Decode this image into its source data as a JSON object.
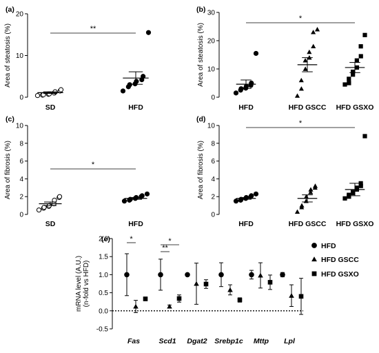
{
  "chart_data": [
    {
      "panel": "(a)",
      "type": "scatter",
      "ylabel": "Area of steatosis (%)",
      "ylim": [
        0,
        20
      ],
      "yticks": [
        "0",
        "10",
        "20"
      ],
      "categories": [
        "SD",
        "HFD"
      ],
      "groups": [
        {
          "category": "SD",
          "marker": "open-circle",
          "mean": 1.1,
          "sem": 0.2,
          "values": [
            0.4,
            0.5,
            0.6,
            0.7,
            0.8,
            1.0,
            1.3,
            1.5,
            1.8
          ]
        },
        {
          "category": "HFD",
          "marker": "circle",
          "mean": 4.6,
          "sem": 1.5,
          "values": [
            1.5,
            2.5,
            3.0,
            3.2,
            3.8,
            4.2,
            5.0,
            15.5
          ]
        }
      ],
      "significance": [
        {
          "from": "SD",
          "to": "HFD",
          "label": "**"
        }
      ]
    },
    {
      "panel": "(b)",
      "type": "scatter",
      "ylabel": "Area of steatosis (%)",
      "ylim": [
        0,
        30
      ],
      "yticks": [
        "0",
        "10",
        "20",
        "30"
      ],
      "categories": [
        "HFD",
        "HFD GSCC",
        "HFD GSXO"
      ],
      "groups": [
        {
          "category": "HFD",
          "marker": "circle",
          "mean": 4.6,
          "sem": 1.5,
          "values": [
            1.5,
            2.5,
            3.0,
            3.2,
            3.8,
            4.2,
            5.0,
            15.5
          ]
        },
        {
          "category": "HFD GSCC",
          "marker": "triangle",
          "mean": 11.5,
          "sem": 2.5,
          "values": [
            0.5,
            3.0,
            6.0,
            10.0,
            13.0,
            14.0,
            16.0,
            18.0,
            23.0,
            24.0
          ]
        },
        {
          "category": "HFD GSXO",
          "marker": "square",
          "mean": 10.5,
          "sem": 1.8,
          "values": [
            4.5,
            5.0,
            6.5,
            8.0,
            9.0,
            10.5,
            13.0,
            14.5,
            18.0,
            22.0
          ]
        }
      ],
      "significance": [
        {
          "from": "HFD",
          "to": "HFD GSXO",
          "label": "*"
        }
      ]
    },
    {
      "panel": "(c)",
      "type": "scatter",
      "ylabel": "Area of fibrosis (%)",
      "ylim": [
        0,
        10
      ],
      "yticks": [
        "0",
        "2",
        "4",
        "6",
        "8",
        "10"
      ],
      "categories": [
        "SD",
        "HFD"
      ],
      "groups": [
        {
          "category": "SD",
          "marker": "open-circle",
          "mean": 1.2,
          "sem": 0.2,
          "values": [
            0.5,
            0.7,
            0.8,
            0.9,
            1.0,
            1.2,
            1.6,
            1.9,
            2.0
          ]
        },
        {
          "category": "HFD",
          "marker": "circle",
          "mean": 1.8,
          "sem": 0.1,
          "values": [
            1.5,
            1.6,
            1.7,
            1.8,
            1.9,
            2.0,
            2.1,
            2.3
          ]
        }
      ],
      "significance": [
        {
          "from": "SD",
          "to": "HFD",
          "label": "*"
        }
      ]
    },
    {
      "panel": "(d)",
      "type": "scatter",
      "ylabel": "Area of fibrosis (%)",
      "ylim": [
        0,
        10
      ],
      "yticks": [
        "0",
        "2",
        "4",
        "6",
        "8",
        "10"
      ],
      "categories": [
        "HFD",
        "HFD GSCC",
        "HFD GSXO"
      ],
      "groups": [
        {
          "category": "HFD",
          "marker": "circle",
          "mean": 1.8,
          "sem": 0.1,
          "values": [
            1.5,
            1.6,
            1.7,
            1.8,
            1.9,
            2.0,
            2.1,
            2.3
          ]
        },
        {
          "category": "HFD GSCC",
          "marker": "triangle",
          "mean": 1.8,
          "sem": 0.4,
          "values": [
            0.3,
            0.8,
            1.0,
            1.5,
            2.0,
            2.5,
            2.8,
            3.0,
            3.2
          ]
        },
        {
          "category": "HFD GSXO",
          "marker": "square",
          "mean": 2.8,
          "sem": 0.7,
          "values": [
            1.8,
            2.0,
            2.2,
            2.4,
            2.5,
            2.8,
            3.0,
            3.2,
            3.5,
            8.8
          ]
        }
      ],
      "significance": [
        {
          "from": "HFD",
          "to": "HFD GSXO",
          "label": "*"
        }
      ]
    },
    {
      "panel": "(e)",
      "type": "scatter",
      "ylabel": "mRNA level (A.U.)",
      "ylabel2": "(n-fold vs HFD)",
      "ylim": [
        -0.5,
        2.0
      ],
      "yticks": [
        "-0.5",
        "0.0",
        "0.5",
        "1.0",
        "1.5",
        "2.0"
      ],
      "categories": [
        "Fas",
        "Scd1",
        "Dgat2",
        "Srebp1c",
        "Mttp",
        "Lpl"
      ],
      "series": [
        {
          "name": "HFD",
          "marker": "circle",
          "values": [
            1.0,
            1.0,
            1.0,
            1.0,
            1.0,
            1.0
          ],
          "sem": [
            0.58,
            0.43,
            0.03,
            0.33,
            0.12,
            0.06
          ]
        },
        {
          "name": "HFD GSCC",
          "marker": "triangle",
          "values": [
            0.12,
            0.12,
            0.75,
            0.58,
            0.98,
            0.42
          ],
          "sem": [
            0.17,
            0.04,
            0.57,
            0.14,
            0.35,
            0.3
          ]
        },
        {
          "name": "HFD GSXO",
          "marker": "square",
          "values": [
            0.33,
            0.34,
            0.74,
            0.3,
            0.79,
            0.4
          ],
          "sem": [
            0.05,
            0.1,
            0.12,
            0.06,
            0.2,
            0.5
          ]
        }
      ],
      "significance": [
        {
          "category": "Fas",
          "from": "HFD",
          "to": "HFD GSCC",
          "label": "*"
        },
        {
          "category": "Scd1",
          "from": "HFD",
          "to": "HFD GSXO",
          "label": "*"
        },
        {
          "category": "Scd1",
          "from": "HFD",
          "to": "HFD GSCC",
          "label": "**"
        }
      ],
      "legend_position": "right",
      "reference_line": {
        "y": 0,
        "style": "dotted"
      }
    }
  ]
}
